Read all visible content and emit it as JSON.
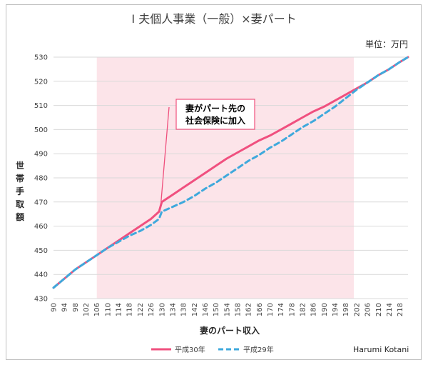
{
  "chart_data": {
    "type": "line",
    "title": "Ⅰ 夫個人事業（一般）×妻パート",
    "unit_label": "単位：万円",
    "xlabel": "妻のパート収入",
    "ylabel": "世帯手取額",
    "credit": "Harumi Kotani",
    "ylim": [
      430,
      530
    ],
    "y_ticks": [
      430,
      440,
      450,
      460,
      470,
      480,
      490,
      500,
      510,
      520,
      530
    ],
    "xlim": [
      90,
      221
    ],
    "x_ticks": [
      90,
      94,
      98,
      102,
      106,
      110,
      114,
      118,
      122,
      126,
      130,
      134,
      138,
      142,
      146,
      150,
      154,
      158,
      162,
      166,
      170,
      174,
      178,
      182,
      186,
      190,
      194,
      198,
      202,
      206,
      210,
      214,
      218
    ],
    "shaded_region": {
      "x_from": 106,
      "x_to": 201,
      "color": "#fce4e9"
    },
    "grid": "horizontal",
    "annotation": {
      "lines": [
        "妻がパート先の",
        "社会保険に加入"
      ],
      "point": {
        "x": 130,
        "y": 470
      }
    },
    "series": [
      {
        "name": "平成30年",
        "color": "#f0507f",
        "dash": "solid",
        "points": [
          [
            90,
            434.5
          ],
          [
            98,
            442
          ],
          [
            106,
            448
          ],
          [
            110,
            451
          ],
          [
            114,
            454
          ],
          [
            118,
            457
          ],
          [
            122,
            460
          ],
          [
            126,
            463
          ],
          [
            129,
            466
          ],
          [
            130,
            470
          ],
          [
            134,
            473
          ],
          [
            138,
            476
          ],
          [
            142,
            479
          ],
          [
            146,
            482
          ],
          [
            150,
            485
          ],
          [
            154,
            488
          ],
          [
            158,
            490.5
          ],
          [
            162,
            493
          ],
          [
            166,
            495.5
          ],
          [
            170,
            497.5
          ],
          [
            174,
            500
          ],
          [
            178,
            502.5
          ],
          [
            182,
            505
          ],
          [
            186,
            507.5
          ],
          [
            190,
            509.5
          ],
          [
            194,
            512
          ],
          [
            198,
            514.5
          ],
          [
            202,
            517
          ],
          [
            206,
            519.5
          ],
          [
            210,
            522.5
          ],
          [
            214,
            525
          ],
          [
            218,
            528
          ],
          [
            221,
            530
          ]
        ]
      },
      {
        "name": "平成29年",
        "color": "#3fa9dc",
        "dash": "dashed",
        "points": [
          [
            90,
            434.5
          ],
          [
            98,
            442
          ],
          [
            106,
            448
          ],
          [
            110,
            451
          ],
          [
            114,
            453.5
          ],
          [
            118,
            456
          ],
          [
            122,
            458
          ],
          [
            126,
            460.5
          ],
          [
            129,
            463
          ],
          [
            130,
            466
          ],
          [
            134,
            468
          ],
          [
            138,
            470
          ],
          [
            142,
            472.5
          ],
          [
            146,
            475.5
          ],
          [
            150,
            478
          ],
          [
            154,
            481
          ],
          [
            158,
            484
          ],
          [
            162,
            487
          ],
          [
            166,
            489.5
          ],
          [
            170,
            492.5
          ],
          [
            174,
            495
          ],
          [
            178,
            498
          ],
          [
            182,
            501
          ],
          [
            186,
            503.5
          ],
          [
            190,
            506.5
          ],
          [
            194,
            509.5
          ],
          [
            198,
            513
          ],
          [
            202,
            516.5
          ],
          [
            206,
            519.5
          ],
          [
            210,
            522.5
          ],
          [
            214,
            525
          ],
          [
            218,
            528
          ],
          [
            221,
            530
          ]
        ]
      }
    ]
  }
}
